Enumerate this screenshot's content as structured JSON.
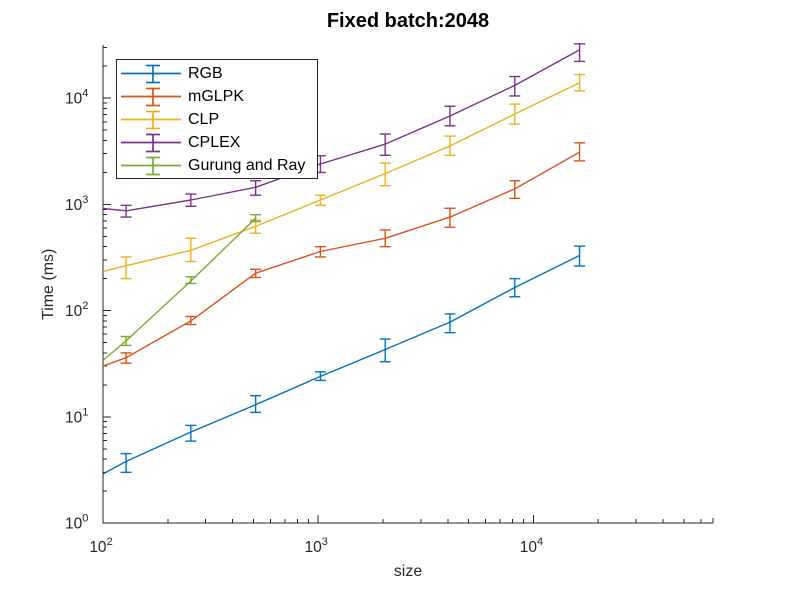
{
  "chart_data": {
    "type": "line",
    "title": "Fixed batch:2048",
    "xlabel": "size",
    "ylabel": "Time (ms)",
    "x_scale": "log",
    "y_scale": "log",
    "xlim": [
      100,
      68000
    ],
    "ylim": [
      1,
      31600
    ],
    "x_ticks": [
      100,
      1000,
      10000
    ],
    "x_tick_labels": [
      "10^2",
      "10^3",
      "10^4"
    ],
    "y_ticks": [
      1,
      10,
      100,
      1000,
      10000
    ],
    "y_tick_labels": [
      "10^0",
      "10^1",
      "10^2",
      "10^3",
      "10^4"
    ],
    "grid": false,
    "error_bars": true,
    "legend_position": "top-left",
    "axis_color": "#262626",
    "series": [
      {
        "name": "RGB",
        "color": "#0072BD",
        "x": [
          128,
          256,
          512,
          1024,
          2048,
          4096,
          8192,
          16384
        ],
        "y": [
          3.8,
          7.2,
          13,
          24,
          43,
          78,
          165,
          330
        ],
        "y_low": [
          3.0,
          5.9,
          11,
          22,
          33,
          62,
          135,
          263
        ],
        "y_high": [
          4.5,
          8.3,
          15.8,
          26.5,
          54,
          93,
          200,
          405
        ],
        "left_edge_value": 2.9
      },
      {
        "name": "mGLPK",
        "color": "#D95319",
        "x": [
          128,
          256,
          512,
          1024,
          2048,
          4096,
          8192,
          16384
        ],
        "y": [
          36,
          80,
          225,
          360,
          480,
          760,
          1400,
          3100
        ],
        "y_low": [
          32,
          74,
          205,
          320,
          400,
          610,
          1140,
          2570
        ],
        "y_high": [
          40,
          88,
          245,
          400,
          575,
          920,
          1670,
          3800
        ],
        "left_edge_value": 30
      },
      {
        "name": "CLP",
        "color": "#EDB120",
        "x": [
          128,
          256,
          512,
          1024,
          2048,
          4096,
          8192,
          16384
        ],
        "y": [
          265,
          370,
          620,
          1100,
          1950,
          3550,
          7100,
          14000
        ],
        "y_low": [
          200,
          290,
          535,
          980,
          1500,
          2900,
          5700,
          11700
        ],
        "y_high": [
          320,
          480,
          710,
          1220,
          2450,
          4400,
          8800,
          16700
        ],
        "left_edge_value": 233
      },
      {
        "name": "CPLEX",
        "color": "#7E2F8E",
        "x": [
          128,
          256,
          512,
          1024,
          2048,
          4096,
          8192,
          16384
        ],
        "y": [
          870,
          1100,
          1450,
          2400,
          3700,
          6800,
          13200,
          28500
        ],
        "y_low": [
          760,
          960,
          1220,
          2000,
          2900,
          5500,
          10500,
          22200
        ],
        "y_high": [
          980,
          1250,
          1670,
          2870,
          4600,
          8400,
          16000,
          32500
        ],
        "left_edge_value": 915
      },
      {
        "name": "Gurung and Ray",
        "color": "#77AC30",
        "x": [
          128,
          256,
          512
        ],
        "y": [
          52,
          190,
          740
        ],
        "y_low": [
          47,
          180,
          690
        ],
        "y_high": [
          57,
          208,
          800
        ],
        "left_edge_value": 34
      }
    ]
  }
}
